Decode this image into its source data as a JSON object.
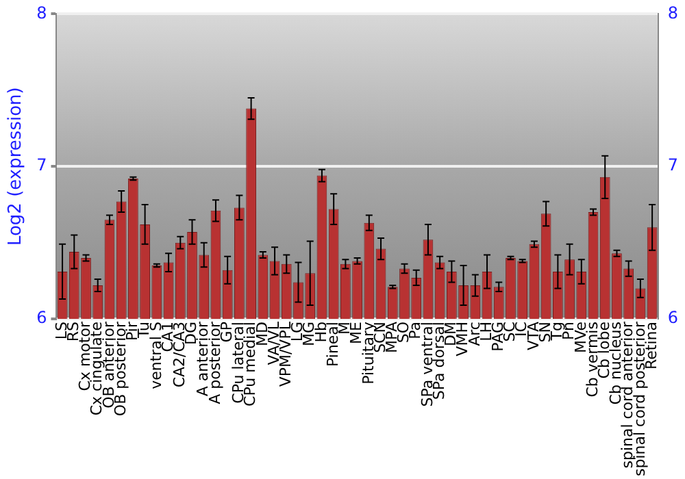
{
  "chart_data": {
    "type": "bar",
    "ylabel": "Log2 (expression)",
    "categories": [
      "LS",
      "RS",
      "Cx motor",
      "Cx cingulate",
      "OB anterior",
      "OB posterior",
      "Pir",
      "Tu",
      "ventral S",
      "CA1",
      "CA2/CA3",
      "DG",
      "A anterior",
      "A posterior",
      "GP",
      "CPu lateral",
      "CPu medial",
      "MD",
      "VA/VL",
      "VPM/VPL",
      "LG",
      "MG",
      "Hb",
      "Pineal",
      "M",
      "ME",
      "Pituitary",
      "SCN",
      "MPA",
      "SO",
      "Pa",
      "SPa ventral",
      "SPa dorsal",
      "DM",
      "VMH",
      "Arc",
      "LH",
      "PAG",
      "SC",
      "IC",
      "VTA",
      "SN",
      "Tg",
      "Pn",
      "MVe",
      "Cb vermis",
      "Cb lobe",
      "Cb nucleus",
      "spinal cord anterior",
      "spinal cord posterior",
      "Retina"
    ],
    "values": [
      6.31,
      6.44,
      6.4,
      6.22,
      6.65,
      6.77,
      6.92,
      6.62,
      6.35,
      6.37,
      6.5,
      6.57,
      6.42,
      6.71,
      6.32,
      6.73,
      7.38,
      6.42,
      6.38,
      6.36,
      6.24,
      6.3,
      6.94,
      6.72,
      6.36,
      6.38,
      6.63,
      6.46,
      6.21,
      6.33,
      6.27,
      6.52,
      6.37,
      6.31,
      6.22,
      6.22,
      6.31,
      6.21,
      6.4,
      6.38,
      6.49,
      6.69,
      6.31,
      6.39,
      6.31,
      6.7,
      6.93,
      6.43,
      6.33,
      6.2,
      6.6
    ],
    "errors": [
      0.18,
      0.11,
      0.02,
      0.04,
      0.03,
      0.07,
      0.01,
      0.13,
      0.01,
      0.06,
      0.04,
      0.08,
      0.08,
      0.07,
      0.09,
      0.08,
      0.07,
      0.02,
      0.09,
      0.06,
      0.13,
      0.21,
      0.04,
      0.1,
      0.03,
      0.02,
      0.05,
      0.07,
      0.01,
      0.03,
      0.05,
      0.1,
      0.04,
      0.07,
      0.13,
      0.07,
      0.11,
      0.03,
      0.01,
      0.01,
      0.02,
      0.08,
      0.11,
      0.1,
      0.08,
      0.02,
      0.14,
      0.02,
      0.05,
      0.06,
      0.15
    ],
    "color": "#b83232",
    "ylim": [
      6,
      8
    ],
    "yticks": [
      6,
      7,
      8
    ],
    "y2lim": [
      6,
      8
    ],
    "y2ticks": [
      6,
      7,
      8
    ],
    "grid": "y"
  }
}
